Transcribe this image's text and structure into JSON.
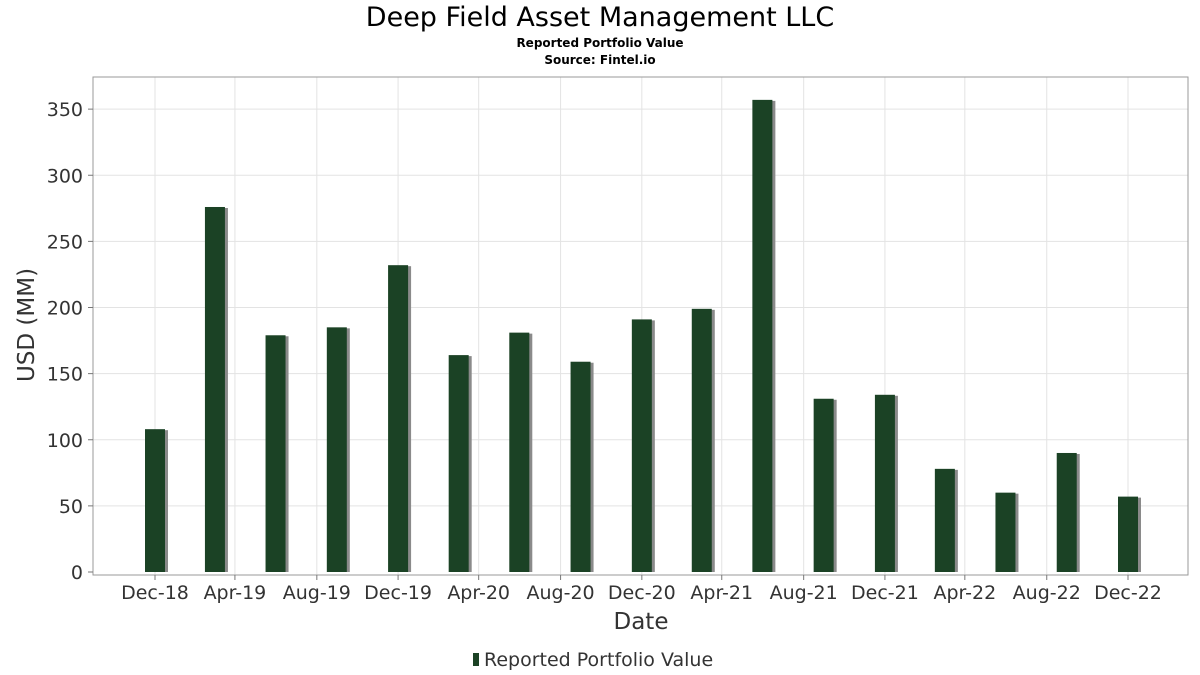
{
  "chart_data": {
    "type": "bar",
    "title": "Deep Field Asset Management LLC",
    "subtitle": "Reported Portfolio Value",
    "source": "Source: Fintel.io",
    "xlabel": "Date",
    "ylabel": "USD (MM)",
    "x_tick_labels": [
      "Dec-18",
      "Apr-19",
      "Aug-19",
      "Dec-19",
      "Apr-20",
      "Aug-20",
      "Dec-20",
      "Apr-21",
      "Aug-21",
      "Dec-21",
      "Apr-22",
      "Aug-22",
      "Dec-22"
    ],
    "y_ticks": [
      0,
      50,
      100,
      150,
      200,
      250,
      300,
      350
    ],
    "ylim": [
      0,
      375
    ],
    "grid": true,
    "legend_position": "bottom-center",
    "series": [
      {
        "name": "Reported Portfolio Value",
        "color": "#1b4225",
        "shadow_color": "#8a8a8a",
        "points": [
          {
            "date": "2018-12-31",
            "value": 108
          },
          {
            "date": "2019-03-31",
            "value": 276
          },
          {
            "date": "2019-06-30",
            "value": 179
          },
          {
            "date": "2019-09-30",
            "value": 185
          },
          {
            "date": "2019-12-31",
            "value": 232
          },
          {
            "date": "2020-03-31",
            "value": 164
          },
          {
            "date": "2020-06-30",
            "value": 181
          },
          {
            "date": "2020-09-30",
            "value": 159
          },
          {
            "date": "2020-12-31",
            "value": 191
          },
          {
            "date": "2021-03-31",
            "value": 199
          },
          {
            "date": "2021-06-30",
            "value": 357
          },
          {
            "date": "2021-09-30",
            "value": 131
          },
          {
            "date": "2021-12-31",
            "value": 134
          },
          {
            "date": "2022-03-31",
            "value": 78
          },
          {
            "date": "2022-06-30",
            "value": 60
          },
          {
            "date": "2022-09-30",
            "value": 90
          },
          {
            "date": "2022-12-31",
            "value": 57
          }
        ]
      }
    ]
  }
}
